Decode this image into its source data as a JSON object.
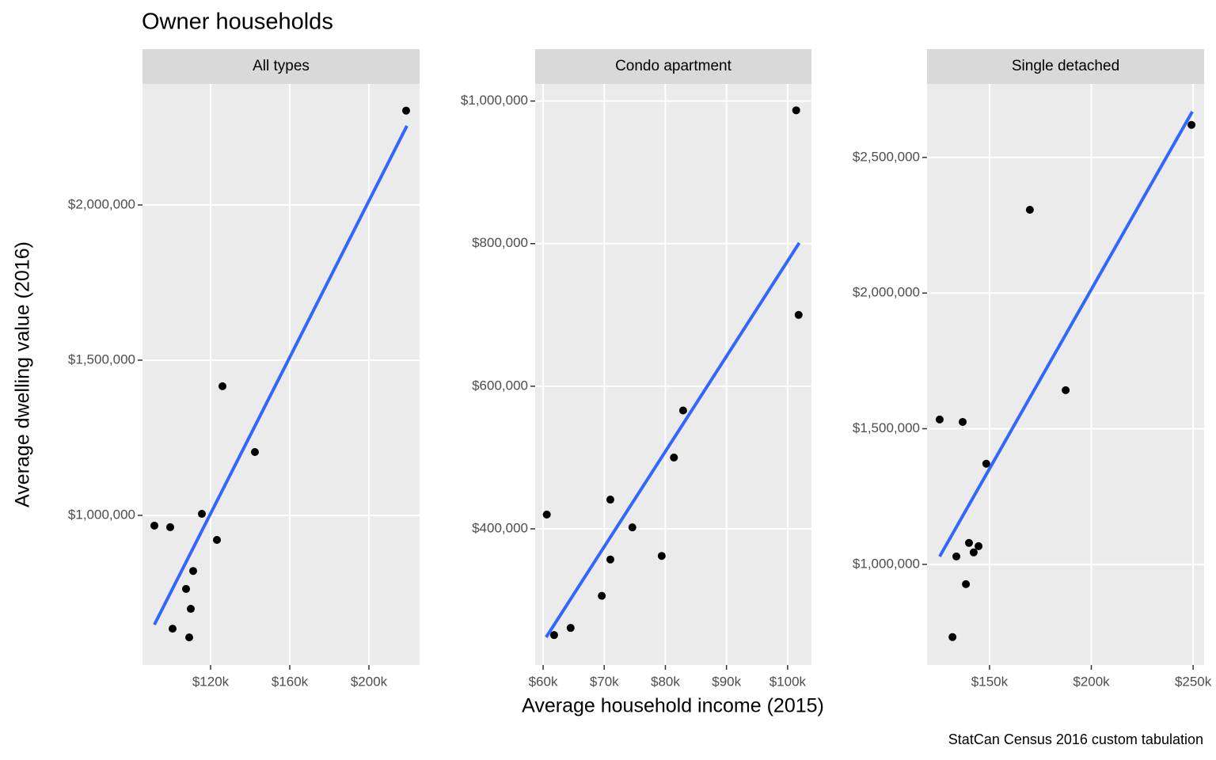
{
  "title": "Owner households",
  "x_label": "Average household income (2015)",
  "y_label": "Average dwelling value (2016)",
  "caption": "StatCan Census 2016 custom tabulation",
  "chart_data": [
    {
      "type": "scatter",
      "title": "All types",
      "color": "#000000",
      "x": [
        91600,
        99600,
        100800,
        109200,
        107600,
        110000,
        111200,
        115600,
        123200,
        126000,
        142400,
        218800
      ],
      "values": [
        967000,
        962000,
        635000,
        607000,
        763000,
        699000,
        821000,
        1005000,
        921000,
        1416000,
        1204000,
        2304000
      ],
      "trend": {
        "color": "#3366ff",
        "x": [
          91600,
          219200
        ],
        "y": [
          648000,
          2255000
        ]
      },
      "xlim": [
        85600,
        225600
      ],
      "xticks": [
        {
          "value": 120000,
          "label": "$120k"
        },
        {
          "value": 160000,
          "label": "$160k"
        },
        {
          "value": 200000,
          "label": "$200k"
        }
      ],
      "ylim": [
        518000,
        2390000
      ],
      "yticks": [
        {
          "value": 1000000,
          "label": "$1,000,000"
        },
        {
          "value": 1500000,
          "label": "$1,500,000"
        },
        {
          "value": 2000000,
          "label": "$2,000,000"
        }
      ],
      "grid": true
    },
    {
      "type": "scatter",
      "title": "Condo apartment",
      "color": "#000000",
      "x": [
        60600,
        61800,
        64500,
        69600,
        71000,
        71000,
        74600,
        79400,
        81400,
        82900,
        101400,
        101800
      ],
      "values": [
        420000,
        251000,
        261000,
        306000,
        441000,
        357000,
        402000,
        362000,
        500000,
        566000,
        987000,
        700000
      ],
      "trend": {
        "color": "#3366ff",
        "x": [
          60500,
          101900
        ],
        "y": [
          248000,
          801000
        ]
      },
      "xlim": [
        58700,
        103900
      ],
      "xticks": [
        {
          "value": 60000,
          "label": "$60k"
        },
        {
          "value": 70000,
          "label": "$70k"
        },
        {
          "value": 80000,
          "label": "$80k"
        },
        {
          "value": 90000,
          "label": "$90k"
        },
        {
          "value": 100000,
          "label": "$100k"
        }
      ],
      "ylim": [
        209000,
        1024000
      ],
      "yticks": [
        {
          "value": 400000,
          "label": "$400,000"
        },
        {
          "value": 600000,
          "label": "$600,000"
        },
        {
          "value": 800000,
          "label": "$800,000"
        },
        {
          "value": 1000000,
          "label": "$1,000,000"
        }
      ],
      "grid": true
    },
    {
      "type": "scatter",
      "title": "Single detached",
      "color": "#000000",
      "x": [
        125500,
        136800,
        131800,
        133700,
        138400,
        139900,
        142200,
        144600,
        148400,
        169800,
        187400,
        249200
      ],
      "values": [
        1534000,
        1525000,
        732000,
        1029000,
        927000,
        1079000,
        1044000,
        1067000,
        1371000,
        2307000,
        1642000,
        2620000
      ],
      "trend": {
        "color": "#3366ff",
        "x": [
          125500,
          249600
        ],
        "y": [
          1029000,
          2669000
        ]
      },
      "xlim": [
        119300,
        255400
      ],
      "xticks": [
        {
          "value": 150000,
          "label": "$150k"
        },
        {
          "value": 200000,
          "label": "$200k"
        },
        {
          "value": 250000,
          "label": "$250k"
        }
      ],
      "ylim": [
        629000,
        2771000
      ],
      "yticks": [
        {
          "value": 1000000,
          "label": "$1,000,000"
        },
        {
          "value": 1500000,
          "label": "$1,500,000"
        },
        {
          "value": 2000000,
          "label": "$2,000,000"
        },
        {
          "value": 2500000,
          "label": "$2,500,000"
        }
      ],
      "grid": true
    }
  ]
}
